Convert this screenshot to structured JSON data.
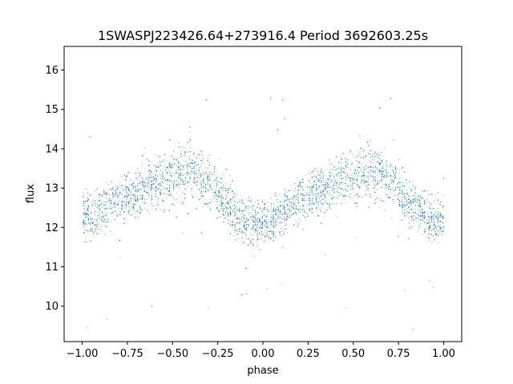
{
  "chart_data": {
    "type": "scatter",
    "title": "1SWASPJ223426.64+273916.4 Period 3692603.25s",
    "xlabel": "phase",
    "ylabel": "flux",
    "xlim": [
      -1.1,
      1.1
    ],
    "ylim": [
      9.1,
      16.6
    ],
    "xticks": [
      -1.0,
      -0.75,
      -0.5,
      -0.25,
      0.0,
      0.25,
      0.5,
      0.75,
      1.0
    ],
    "xtick_labels": [
      "−1.00",
      "−0.75",
      "−0.50",
      "−0.25",
      "0.00",
      "0.25",
      "0.50",
      "0.75",
      "1.00"
    ],
    "yticks": [
      10,
      11,
      12,
      13,
      14,
      15,
      16
    ],
    "ytick_labels": [
      "10",
      "11",
      "12",
      "13",
      "14",
      "15",
      "16"
    ],
    "grid": false,
    "point_color": "#1f77b4",
    "series": [
      {
        "x": [
          -1.0,
          -0.95,
          -0.9,
          -0.85,
          -0.8,
          -0.75,
          -0.7,
          -0.65,
          -0.6,
          -0.55,
          -0.5,
          -0.45,
          -0.4,
          -0.35,
          -0.3,
          -0.25,
          -0.2,
          -0.15,
          -0.1,
          -0.05,
          0.0,
          0.05,
          0.1,
          0.15,
          0.2,
          0.25,
          0.3,
          0.35,
          0.4,
          0.45,
          0.5,
          0.55,
          0.6,
          0.65,
          0.7,
          0.75,
          0.8,
          0.85,
          0.9,
          0.95,
          1.0
        ],
        "y": [
          12.3,
          12.3,
          12.4,
          12.6,
          12.7,
          12.8,
          12.9,
          13.0,
          13.1,
          13.2,
          13.3,
          13.4,
          13.4,
          13.3,
          13.1,
          12.9,
          12.6,
          12.3,
          12.2,
          12.1,
          12.1,
          12.2,
          12.4,
          12.6,
          12.7,
          12.8,
          12.9,
          13.0,
          13.1,
          13.2,
          13.3,
          13.4,
          13.4,
          13.3,
          13.2,
          13.0,
          12.7,
          12.5,
          12.3,
          12.2,
          12.2
        ],
        "spread": [
          0.5,
          0.55,
          0.6,
          0.6,
          0.6,
          0.6,
          0.6,
          0.65,
          0.7,
          0.7,
          0.7,
          0.7,
          0.7,
          0.7,
          0.65,
          0.6,
          0.6,
          0.6,
          0.6,
          0.6,
          0.55,
          0.55,
          0.6,
          0.6,
          0.6,
          0.6,
          0.6,
          0.6,
          0.65,
          0.7,
          0.7,
          0.7,
          0.7,
          0.7,
          0.7,
          0.65,
          0.6,
          0.6,
          0.6,
          0.55,
          0.5
        ]
      }
    ]
  }
}
